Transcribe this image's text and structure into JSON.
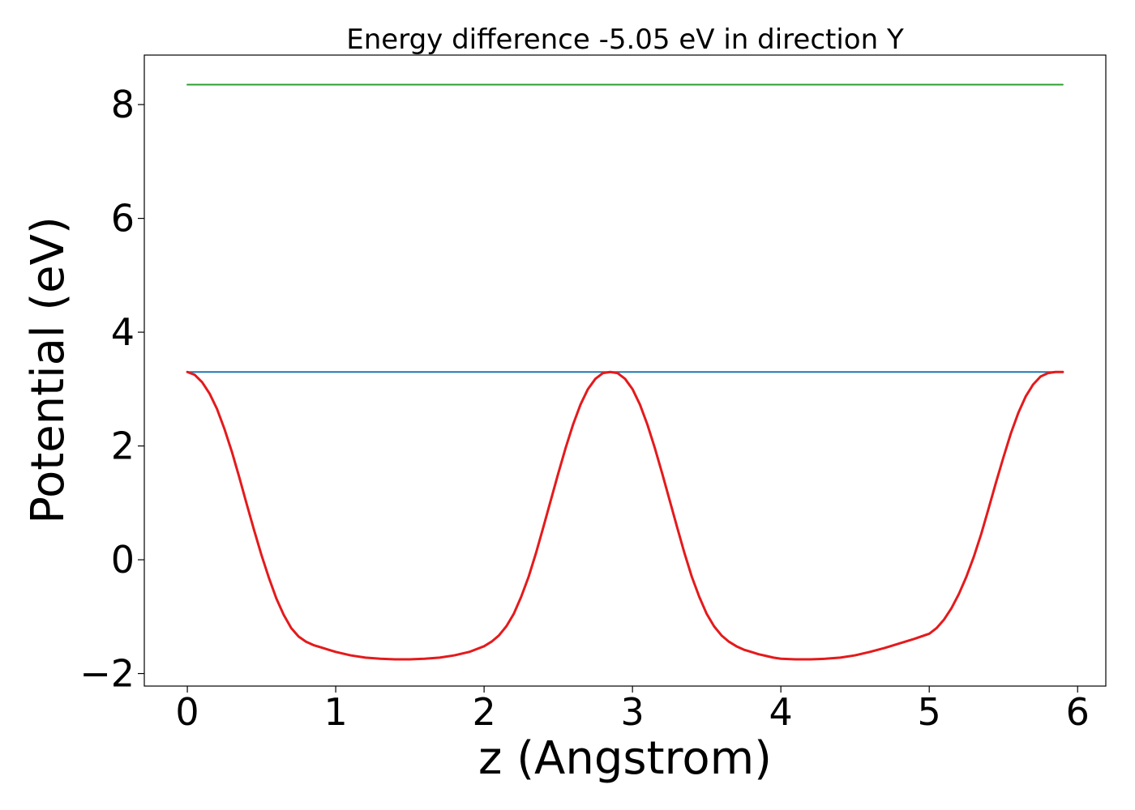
{
  "chart_data": {
    "type": "line",
    "title": "Energy difference -5.05 eV in direction Y",
    "xlabel": "z (Angstrom)",
    "ylabel": "Potential (eV)",
    "xlim": [
      -0.29,
      6.19
    ],
    "ylim": [
      -2.22,
      8.87
    ],
    "xticks": [
      0,
      1,
      2,
      3,
      4,
      5,
      6
    ],
    "xtick_labels": [
      "0",
      "1",
      "2",
      "3",
      "4",
      "5",
      "6"
    ],
    "yticks": [
      -2,
      0,
      2,
      4,
      6,
      8
    ],
    "ytick_labels": [
      "−2",
      "0",
      "2",
      "4",
      "6",
      "8"
    ],
    "grid": false,
    "series": [
      {
        "color": "#2ca02c",
        "x": [
          0,
          5.9
        ],
        "y": [
          8.35,
          8.35
        ]
      },
      {
        "color": "#1f77b4",
        "x": [
          0,
          5.9
        ],
        "y": [
          3.3,
          3.3
        ]
      },
      {
        "color": "#e41a1c",
        "x": [
          0,
          0.05,
          0.1,
          0.15,
          0.2,
          0.25,
          0.3,
          0.35,
          0.4,
          0.45,
          0.5,
          0.55,
          0.6,
          0.65,
          0.7,
          0.75,
          0.8,
          0.85,
          0.9,
          0.95,
          1.0,
          1.1,
          1.2,
          1.3,
          1.4,
          1.5,
          1.6,
          1.7,
          1.8,
          1.9,
          2.0,
          2.05,
          2.1,
          2.15,
          2.2,
          2.25,
          2.3,
          2.35,
          2.4,
          2.45,
          2.5,
          2.55,
          2.6,
          2.65,
          2.7,
          2.75,
          2.8,
          2.85,
          2.9,
          2.95,
          3.0,
          3.05,
          3.1,
          3.15,
          3.2,
          3.25,
          3.3,
          3.35,
          3.4,
          3.45,
          3.5,
          3.55,
          3.6,
          3.65,
          3.7,
          3.75,
          3.8,
          3.85,
          3.9,
          3.95,
          4.0,
          4.1,
          4.2,
          4.3,
          4.4,
          4.5,
          4.6,
          4.7,
          4.8,
          4.9,
          5.0,
          5.05,
          5.1,
          5.15,
          5.2,
          5.25,
          5.3,
          5.35,
          5.4,
          5.45,
          5.5,
          5.55,
          5.6,
          5.65,
          5.7,
          5.75,
          5.8,
          5.85,
          5.9
        ],
        "y": [
          3.3,
          3.25,
          3.12,
          2.92,
          2.65,
          2.3,
          1.9,
          1.45,
          0.98,
          0.52,
          0.08,
          -0.32,
          -0.68,
          -0.97,
          -1.2,
          -1.35,
          -1.44,
          -1.5,
          -1.54,
          -1.58,
          -1.62,
          -1.68,
          -1.72,
          -1.74,
          -1.75,
          -1.75,
          -1.74,
          -1.72,
          -1.68,
          -1.62,
          -1.52,
          -1.44,
          -1.33,
          -1.17,
          -0.95,
          -0.65,
          -0.3,
          0.12,
          0.58,
          1.05,
          1.52,
          1.97,
          2.38,
          2.73,
          3.0,
          3.18,
          3.28,
          3.3,
          3.28,
          3.18,
          3.0,
          2.73,
          2.38,
          1.97,
          1.52,
          1.05,
          0.58,
          0.12,
          -0.3,
          -0.65,
          -0.95,
          -1.17,
          -1.33,
          -1.44,
          -1.52,
          -1.58,
          -1.62,
          -1.66,
          -1.69,
          -1.72,
          -1.74,
          -1.75,
          -1.75,
          -1.74,
          -1.72,
          -1.68,
          -1.62,
          -1.55,
          -1.47,
          -1.39,
          -1.3,
          -1.2,
          -1.05,
          -0.85,
          -0.6,
          -0.3,
          0.05,
          0.45,
          0.9,
          1.36,
          1.8,
          2.22,
          2.58,
          2.87,
          3.08,
          3.22,
          3.28,
          3.3,
          3.3
        ]
      }
    ]
  }
}
